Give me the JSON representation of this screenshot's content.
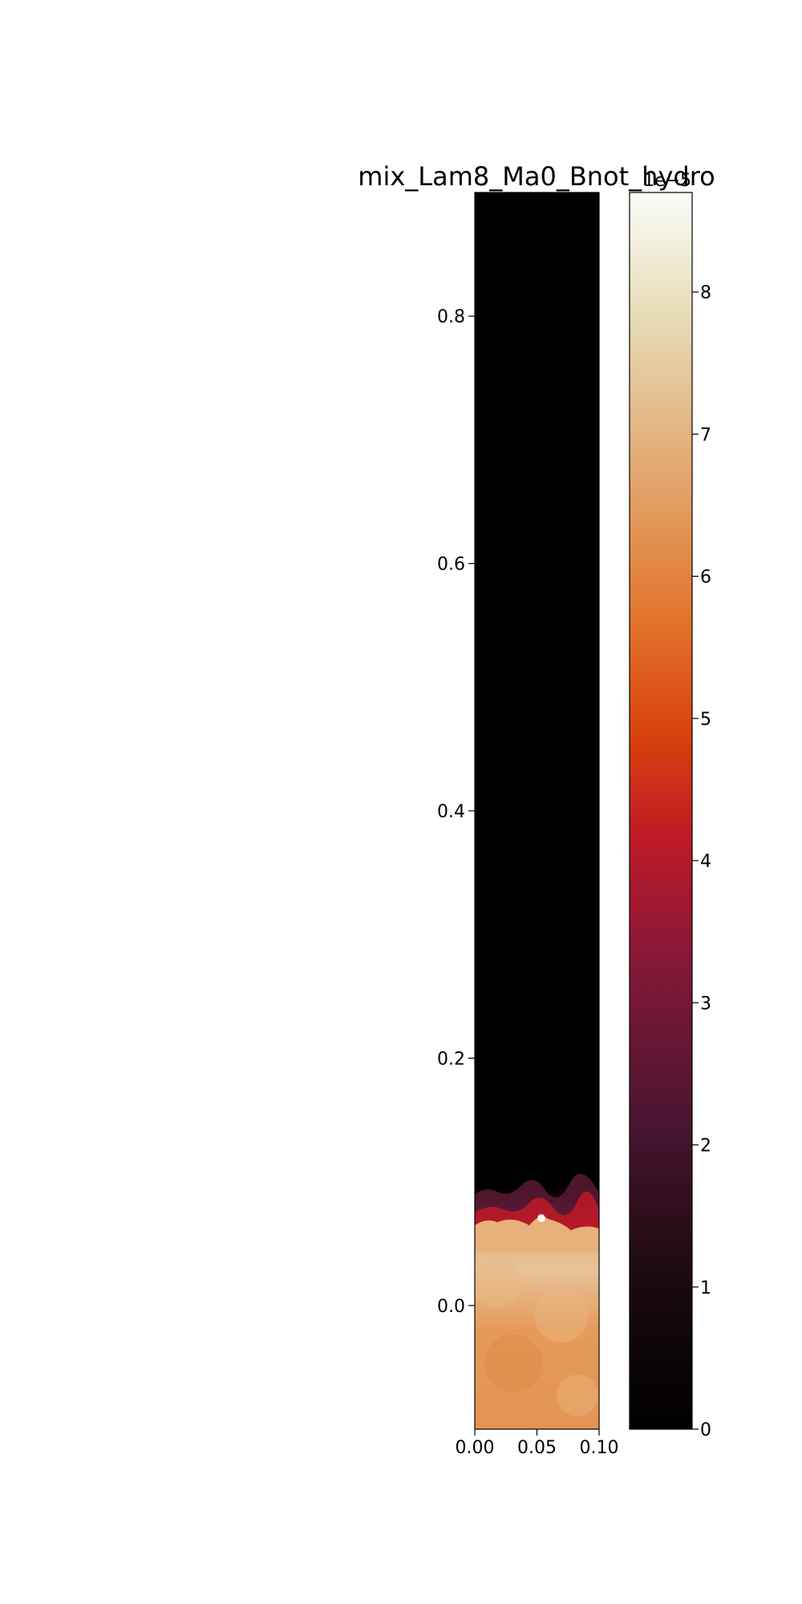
{
  "chart_data": {
    "type": "heatmap",
    "title": "mix_Lam8_Ma0_Bnot_hydro",
    "xlabel": "",
    "ylabel": "",
    "xlim": [
      0.0,
      0.1
    ],
    "ylim": [
      -0.1,
      0.9
    ],
    "x_ticks": [
      "0.00",
      "0.05",
      "0.10"
    ],
    "y_ticks": [
      "0.0",
      "0.2",
      "0.4",
      "0.6",
      "0.8"
    ],
    "field_description": {
      "upper_region": {
        "y_range": [
          0.1,
          0.9
        ],
        "value": 0.0
      },
      "mixing_layer": {
        "y_range": [
          0.05,
          0.1
        ],
        "value_range": [
          1.5e-05,
          8.6e-05
        ]
      },
      "lower_region": {
        "y_range": [
          -0.1,
          0.05
        ],
        "value_range": [
          6e-05,
          7.5e-05
        ]
      }
    },
    "colorbar": {
      "cmap": "sunset (black-red-orange-cream-white)",
      "vmin": 0,
      "vmax": 8.7,
      "ticks": [
        "0",
        "1",
        "2",
        "3",
        "4",
        "5",
        "6",
        "7",
        "8"
      ],
      "offset_text": "1e−5"
    },
    "grid": false,
    "legend": "none"
  }
}
